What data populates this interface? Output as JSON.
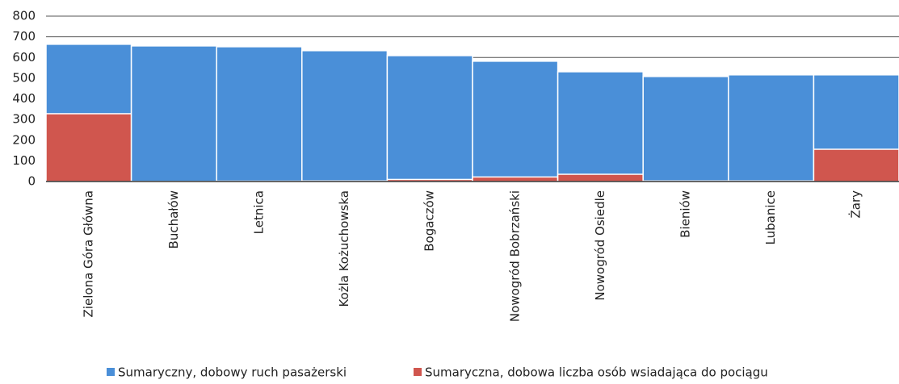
{
  "chart_data": {
    "type": "bar",
    "categories": [
      "Zielona Góra Główna",
      "Buchałów",
      "Letnica",
      "Kożla Kożuchowska",
      "Bogaczów",
      "Nowogród Bobrzański",
      "Nowogród Osiedle",
      "Bieniów",
      "Lubanice",
      "Żary"
    ],
    "series": [
      {
        "name": "Sumaryczny, dobowy ruch pasażerski",
        "color": "#4a8fd8",
        "values": [
          664,
          656,
          652,
          633,
          609,
          582,
          531,
          508,
          516,
          516
        ]
      },
      {
        "name": "Sumaryczna, dobowa liczba osób wsiadająca do pociągu",
        "color": "#d0564e",
        "values": [
          328,
          1,
          2,
          3,
          10,
          22,
          35,
          3,
          3,
          156
        ]
      }
    ],
    "ylim": [
      0,
      800
    ],
    "yticks": [
      0,
      100,
      200,
      300,
      400,
      500,
      600,
      700,
      800
    ],
    "grid": true
  }
}
